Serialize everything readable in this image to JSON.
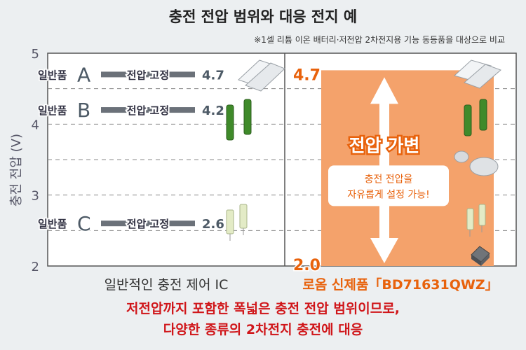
{
  "chart_data": {
    "type": "bar",
    "title": "충전 전압 범위와 대응 전지 예",
    "note": "※1셀 리튬 이온 배터리·저전압 2차전지용 기능 동등품을 대상으로 비교",
    "ylabel": "충전 전압 (V)",
    "ylim": [
      2,
      5
    ],
    "yticks": [
      "2",
      "3",
      "4",
      "5"
    ],
    "grid": true,
    "left_panel": {
      "caption": "일반적인 충전 제어 IC",
      "items": [
        {
          "label": "일반품",
          "letter": "A",
          "text": "전압 고정",
          "value": 4.7,
          "value_label": "4.7"
        },
        {
          "label": "일반품",
          "letter": "B",
          "text": "전압 고정",
          "value": 4.2,
          "value_label": "4.2"
        },
        {
          "label": "일반품",
          "letter": "C",
          "text": "전압 고정",
          "value": 2.6,
          "value_label": "2.6"
        }
      ]
    },
    "right_panel": {
      "caption": "로옴 신제품「BD71631QWZ」",
      "range_min": 2.0,
      "range_max": 4.7,
      "min_label": "2.0",
      "max_label": "4.7",
      "title": "전압 가변",
      "bubble_line1": "충전 전압을",
      "bubble_line2": "자유롭게 설정 가능!"
    },
    "footer_line1": "저전압까지 포함한 폭넓은 충전 전압 범위이므로,",
    "footer_line2": "다양한 종류의 2차전지 충전에 대응"
  },
  "colors": {
    "orange_fill": "#f4a26b",
    "orange_text": "#e8620c",
    "bar_gray": "#6b7179",
    "footer_red": "#d0161a"
  },
  "icons": [
    "pouch-battery-icon",
    "green-cylinder-battery-icon",
    "coin-cell-icon",
    "pale-cylinder-battery-icon",
    "chip-package-icon"
  ]
}
